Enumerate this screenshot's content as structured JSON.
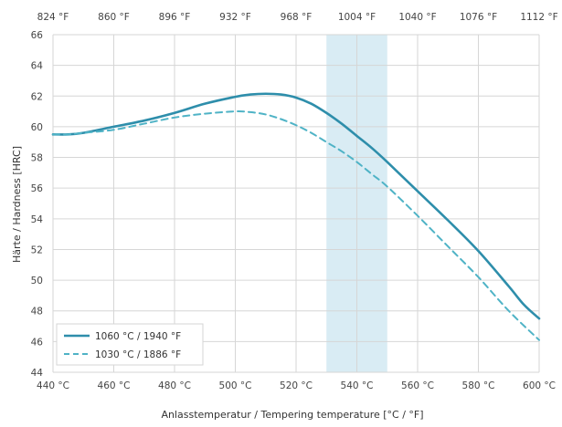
{
  "chart_data": {
    "type": "line",
    "xlabel": "Anlasstemperatur / Tempering temperature [°C / °F]",
    "ylabel": "Härte / Hardness [HRC]",
    "xlim": [
      440,
      600
    ],
    "ylim": [
      44,
      66
    ],
    "x_ticks": [
      440,
      460,
      480,
      500,
      520,
      540,
      560,
      580,
      600
    ],
    "x_tick_labels": [
      "440 °C",
      "460 °C",
      "480 °C",
      "500 °C",
      "520 °C",
      "540 °C",
      "560 °C",
      "580 °C",
      "600 °C"
    ],
    "y_ticks": [
      44,
      46,
      48,
      50,
      52,
      54,
      56,
      58,
      60,
      62,
      64,
      66
    ],
    "y_tick_labels": [
      "44",
      "46",
      "48",
      "50",
      "52",
      "54",
      "56",
      "58",
      "60",
      "62",
      "64",
      "66"
    ],
    "secondary_x_ticks": [
      440,
      460,
      480,
      500,
      520,
      540,
      560,
      580,
      600
    ],
    "secondary_x_tick_labels": [
      "824 °F",
      "860 °F",
      "896 °F",
      "932 °F",
      "968 °F",
      "1004 °F",
      "1040 °F",
      "1076 °F",
      "1112 °F"
    ],
    "highlight_band": {
      "x_from": 530,
      "x_to": 550,
      "color": "#d9ecf4"
    },
    "grid": true,
    "legend_position": "bottom-left",
    "series": [
      {
        "name": "1060 °C / 1940 °F",
        "style": "solid",
        "color": "#2e8eab",
        "x": [
          440,
          445,
          450,
          460,
          470,
          480,
          490,
          500,
          505,
          510,
          515,
          520,
          525,
          530,
          535,
          540,
          545,
          550,
          560,
          570,
          580,
          590,
          595,
          600
        ],
        "y": [
          59.5,
          59.5,
          59.6,
          60.0,
          60.4,
          60.9,
          61.5,
          61.95,
          62.1,
          62.15,
          62.1,
          61.9,
          61.5,
          60.9,
          60.2,
          59.4,
          58.6,
          57.7,
          55.8,
          53.9,
          51.9,
          49.6,
          48.4,
          47.5
        ]
      },
      {
        "name": "1030 °C / 1886 °F",
        "style": "dashed",
        "color": "#4fb3c6",
        "x": [
          440,
          445,
          450,
          460,
          470,
          480,
          490,
          500,
          505,
          510,
          515,
          520,
          525,
          530,
          535,
          540,
          545,
          550,
          560,
          570,
          580,
          590,
          600
        ],
        "y": [
          59.5,
          59.5,
          59.6,
          59.8,
          60.2,
          60.6,
          60.85,
          61.0,
          60.95,
          60.8,
          60.5,
          60.1,
          59.6,
          59.0,
          58.4,
          57.7,
          56.9,
          56.1,
          54.2,
          52.2,
          50.2,
          48.0,
          46.1
        ]
      }
    ]
  }
}
